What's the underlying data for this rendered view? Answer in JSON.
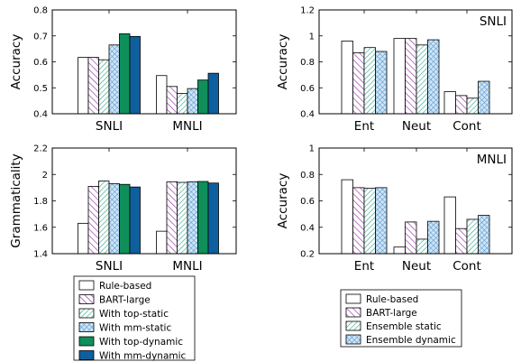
{
  "chart_data": [
    {
      "type": "bar",
      "panel": "top-left",
      "title": "",
      "xlabel": "",
      "ylabel": "Accuracy",
      "ylim": [
        0.4,
        0.8
      ],
      "yticks": [
        0.4,
        0.5,
        0.6,
        0.7,
        0.8
      ],
      "categories": [
        "SNLI",
        "MNLI"
      ],
      "grid": false,
      "series": [
        {
          "name": "Rule-based",
          "values": [
            0.617,
            0.547
          ]
        },
        {
          "name": "BART-large",
          "values": [
            0.617,
            0.505
          ]
        },
        {
          "name": "With top-static",
          "values": [
            0.608,
            0.478
          ]
        },
        {
          "name": "With mm-static",
          "values": [
            0.665,
            0.497
          ]
        },
        {
          "name": "With top-dynamic",
          "values": [
            0.708,
            0.53
          ]
        },
        {
          "name": "With mm-dynamic",
          "values": [
            0.698,
            0.556
          ]
        }
      ]
    },
    {
      "type": "bar",
      "panel": "top-right",
      "title": "SNLI",
      "xlabel": "",
      "ylabel": "Accuracy",
      "ylim": [
        0.4,
        1.2
      ],
      "yticks": [
        0.4,
        0.6,
        0.8,
        1,
        1.2
      ],
      "categories": [
        "Ent",
        "Neut",
        "Cont"
      ],
      "grid": false,
      "series": [
        {
          "name": "Rule-based",
          "values": [
            0.96,
            0.98,
            0.57
          ]
        },
        {
          "name": "BART-large",
          "values": [
            0.87,
            0.98,
            0.54
          ]
        },
        {
          "name": "Ensemble static",
          "values": [
            0.91,
            0.93,
            0.52
          ]
        },
        {
          "name": "Ensemble dynamic",
          "values": [
            0.88,
            0.97,
            0.65
          ]
        }
      ]
    },
    {
      "type": "bar",
      "panel": "bottom-left",
      "title": "",
      "xlabel": "",
      "ylabel": "Grammaticality",
      "ylim": [
        1.4,
        2.2
      ],
      "yticks": [
        1.4,
        1.6,
        1.8,
        2,
        2.2
      ],
      "categories": [
        "SNLI",
        "MNLI"
      ],
      "grid": false,
      "series": [
        {
          "name": "Rule-based",
          "values": [
            1.63,
            1.57
          ]
        },
        {
          "name": "BART-large",
          "values": [
            1.91,
            1.945
          ]
        },
        {
          "name": "With top-static",
          "values": [
            1.95,
            1.94
          ]
        },
        {
          "name": "With mm-static",
          "values": [
            1.93,
            1.945
          ]
        },
        {
          "name": "With top-dynamic",
          "values": [
            1.925,
            1.947
          ]
        },
        {
          "name": "With mm-dynamic",
          "values": [
            1.905,
            1.935
          ]
        }
      ]
    },
    {
      "type": "bar",
      "panel": "bottom-right",
      "title": "MNLI",
      "xlabel": "",
      "ylabel": "Accuracy",
      "ylim": [
        0.2,
        1.0
      ],
      "yticks": [
        0.2,
        0.4,
        0.6,
        0.8,
        1
      ],
      "categories": [
        "Ent",
        "Neut",
        "Cont"
      ],
      "grid": false,
      "series": [
        {
          "name": "Rule-based",
          "values": [
            0.76,
            0.25,
            0.63
          ]
        },
        {
          "name": "BART-large",
          "values": [
            0.7,
            0.44,
            0.39
          ]
        },
        {
          "name": "Ensemble static",
          "values": [
            0.695,
            0.31,
            0.46
          ]
        },
        {
          "name": "Ensemble dynamic",
          "values": [
            0.7,
            0.445,
            0.49
          ]
        }
      ]
    }
  ],
  "legends": {
    "left": [
      "Rule-based",
      "BART-large",
      "With top-static",
      "With mm-static",
      "With top-dynamic",
      "With mm-dynamic"
    ],
    "right": [
      "Rule-based",
      "BART-large",
      "Ensemble static",
      "Ensemble dynamic"
    ]
  },
  "styles": {
    "Rule-based": {
      "fill": "#ffffff",
      "pattern": "none",
      "color": "#000000"
    },
    "BART-large": {
      "fill": "#ffffff",
      "pattern": "diag-left",
      "color": "#9b3fa8"
    },
    "With top-static": {
      "fill": "#ffffff",
      "pattern": "diag-right",
      "color": "#2aa584"
    },
    "With mm-static": {
      "fill": "#ffffff",
      "pattern": "cross",
      "color": "#4a90cc"
    },
    "With top-dynamic": {
      "fill": "#0f8f5a",
      "pattern": "none",
      "color": "#0f8f5a"
    },
    "With mm-dynamic": {
      "fill": "#0e5f9e",
      "pattern": "none",
      "color": "#0e5f9e"
    },
    "Ensemble static": {
      "fill": "#ffffff",
      "pattern": "diag-right",
      "color": "#2aa584"
    },
    "Ensemble dynamic": {
      "fill": "#ffffff",
      "pattern": "cross",
      "color": "#4a90cc"
    }
  }
}
